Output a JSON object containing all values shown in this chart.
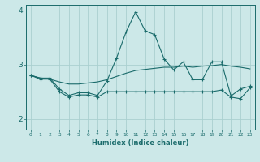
{
  "title": "",
  "xlabel": "Humidex (Indice chaleur)",
  "ylabel": "",
  "bg_color": "#cce8e8",
  "line_color": "#1a6b6b",
  "grid_color": "#aad0d0",
  "x": [
    0,
    1,
    2,
    3,
    4,
    5,
    6,
    7,
    8,
    9,
    10,
    11,
    12,
    13,
    14,
    15,
    16,
    17,
    18,
    19,
    20,
    21,
    22,
    23
  ],
  "y_top": [
    2.8,
    2.75,
    2.75,
    2.55,
    2.43,
    2.48,
    2.48,
    2.43,
    2.7,
    3.12,
    3.6,
    3.97,
    3.62,
    3.55,
    3.1,
    2.9,
    3.05,
    2.72,
    2.72,
    3.05,
    3.05,
    2.42,
    2.55,
    2.6
  ],
  "y_mid": [
    2.8,
    2.75,
    2.73,
    2.68,
    2.64,
    2.64,
    2.66,
    2.68,
    2.72,
    2.78,
    2.84,
    2.89,
    2.91,
    2.93,
    2.95,
    2.95,
    2.97,
    2.95,
    2.97,
    2.98,
    3.0,
    2.97,
    2.95,
    2.92
  ],
  "y_bot": [
    2.8,
    2.73,
    2.73,
    2.5,
    2.4,
    2.44,
    2.44,
    2.4,
    2.5,
    2.5,
    2.5,
    2.5,
    2.5,
    2.5,
    2.5,
    2.5,
    2.5,
    2.5,
    2.5,
    2.5,
    2.53,
    2.4,
    2.37,
    2.57
  ],
  "ylim": [
    1.8,
    4.1
  ],
  "xlim": [
    -0.5,
    23.5
  ],
  "yticks": [
    2,
    3,
    4
  ],
  "xticks": [
    0,
    1,
    2,
    3,
    4,
    5,
    6,
    7,
    8,
    9,
    10,
    11,
    12,
    13,
    14,
    15,
    16,
    17,
    18,
    19,
    20,
    21,
    22,
    23
  ]
}
